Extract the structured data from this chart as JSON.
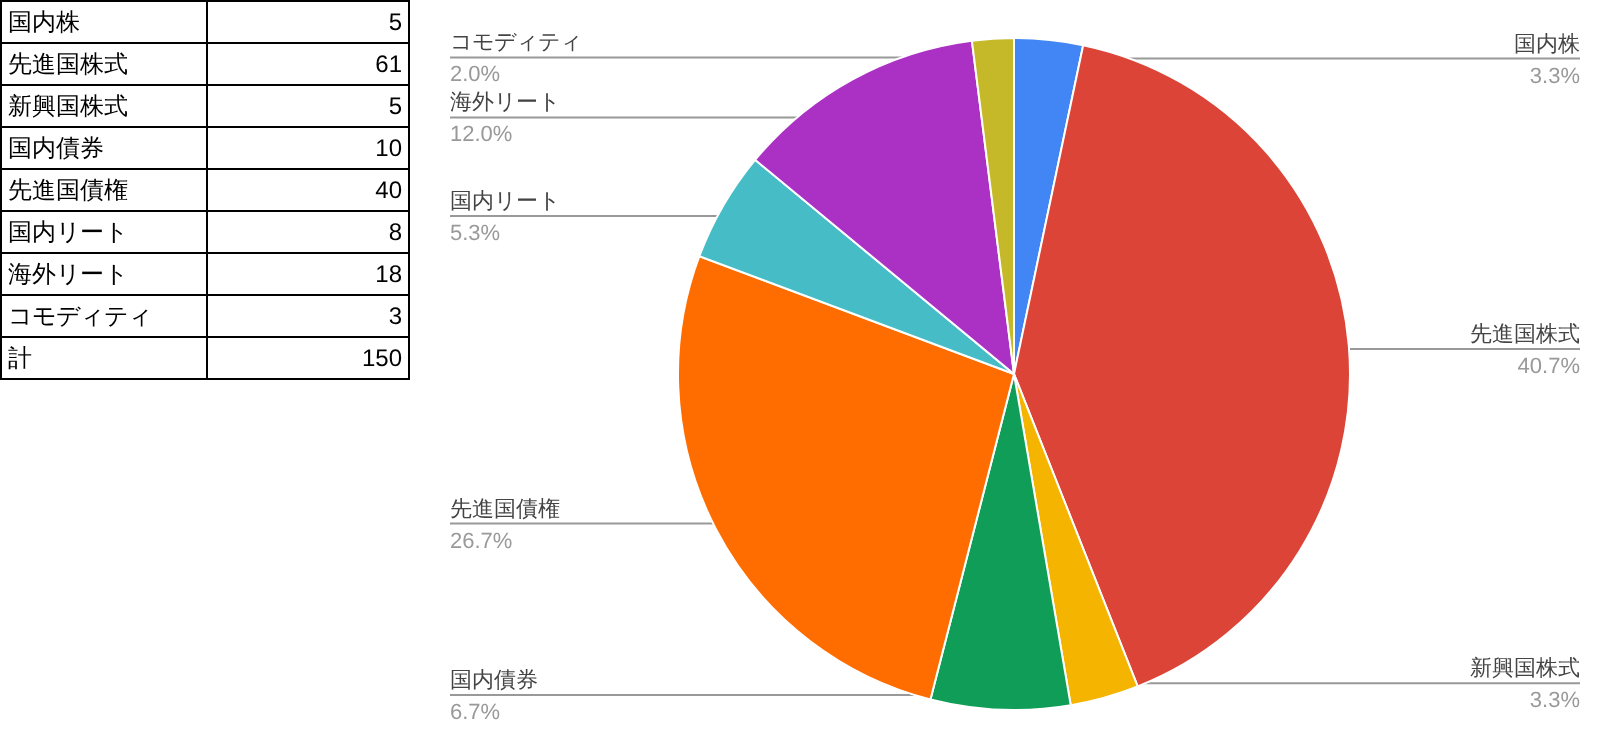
{
  "chart_data": {
    "type": "pie",
    "categories": [
      "国内株",
      "先進国株式",
      "新興国株式",
      "国内債券",
      "先進国債権",
      "国内リート",
      "海外リート",
      "コモディティ"
    ],
    "values": [
      3.3,
      40.7,
      3.3,
      6.7,
      26.7,
      5.3,
      12.0,
      2.0
    ],
    "colors": [
      "#4285f4",
      "#db4437",
      "#f4b400",
      "#0f9d58",
      "#ff6d01",
      "#46bdc6",
      "#ab30c4",
      "#c5b92a"
    ],
    "value_labels": [
      "3.3%",
      "40.7%",
      "3.3%",
      "6.7%",
      "26.7%",
      "5.3%",
      "12.0%",
      "2.0%"
    ],
    "annotations": [
      "5",
      "61",
      "5",
      "10",
      "40",
      "8",
      "18",
      "3",
      "計",
      "150"
    ],
    "legend": false
  }
}
